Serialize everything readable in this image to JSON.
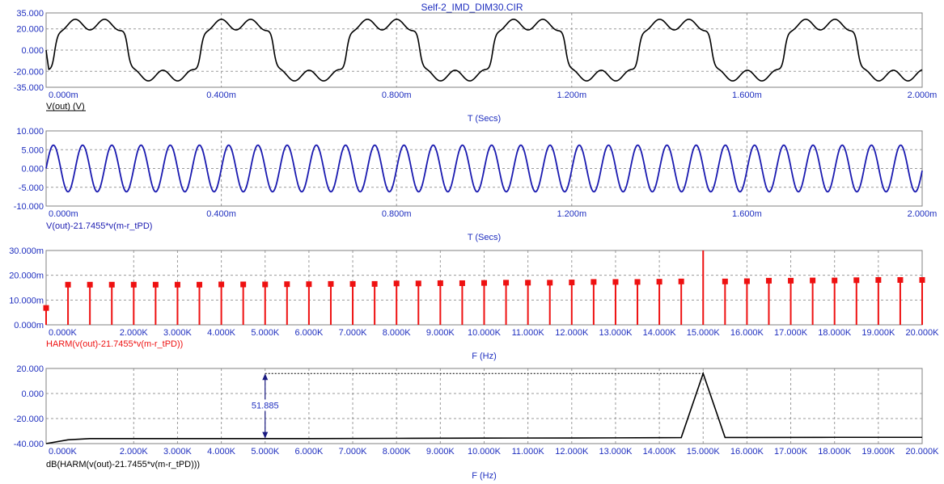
{
  "window_title": "Self-2_IMD_DIM30.CIR",
  "colors": {
    "axis_text": "#1f2fbf",
    "grid": "#9a9a9a",
    "trace_black": "#000000",
    "trace_blue": "#1a1ab0",
    "trace_red": "#ee1111",
    "frame": "#808080"
  },
  "chart_data": [
    {
      "type": "line",
      "expression": "V(out) (V)",
      "expression_color": "#000000",
      "xlabel": "T (Secs)",
      "ylim": [
        -35,
        35
      ],
      "y_tick_values": [
        35,
        20,
        0,
        -20,
        -35
      ],
      "y_tick_labels": [
        "35.000",
        "20.000",
        "0.000",
        "-20.000",
        "-35.000"
      ],
      "xlim": [
        0,
        2.0
      ],
      "x_unit": "ms",
      "x_tick_values": [
        0,
        0.4,
        0.8,
        1.2,
        1.6,
        2.0
      ],
      "x_tick_labels": [
        "0.000m",
        "0.400m",
        "0.800m",
        "1.200m",
        "1.600m",
        "2.000m"
      ],
      "grid": true,
      "square_period_ms": 0.3333,
      "square_amplitude": 24,
      "ripple_amplitude": 5,
      "ripple_period_ms": 0.0667,
      "color": "#000000"
    },
    {
      "type": "line",
      "expression": "V(out)-21.7455*v(m-r_tPD)",
      "expression_color": "#1a1ab0",
      "xlabel": "T (Secs)",
      "ylim": [
        -10,
        10
      ],
      "y_tick_values": [
        10,
        5,
        0,
        -5,
        -10
      ],
      "y_tick_labels": [
        "10.000",
        "5.000",
        "0.000",
        "-5.000",
        "-10.000"
      ],
      "xlim": [
        0,
        2.0
      ],
      "x_unit": "ms",
      "x_tick_values": [
        0,
        0.4,
        0.8,
        1.2,
        1.6,
        2.0
      ],
      "x_tick_labels": [
        "0.000m",
        "0.400m",
        "0.800m",
        "1.200m",
        "1.600m",
        "2.000m"
      ],
      "grid": true,
      "sine_amplitude": 6.2,
      "sine_period_ms": 0.0667,
      "color": "#1a1ab0"
    },
    {
      "type": "bar",
      "expression": "HARM(v(out)-21.7455*v(m-r_tPD))",
      "expression_color": "#ee1111",
      "xlabel": "F (Hz)",
      "ylim": [
        0,
        30
      ],
      "y_unit": "m",
      "y_tick_values": [
        30,
        20,
        10,
        0
      ],
      "y_tick_labels": [
        "30.000m",
        "20.000m",
        "10.000m",
        "0.000m"
      ],
      "xlim": [
        0,
        20000
      ],
      "x_tick_values": [
        0,
        2000,
        3000,
        4000,
        5000,
        6000,
        7000,
        8000,
        9000,
        10000,
        11000,
        12000,
        13000,
        14000,
        15000,
        16000,
        17000,
        18000,
        19000,
        20000
      ],
      "x_tick_labels": [
        "0.000K",
        "2.000K",
        "3.000K",
        "4.000K",
        "5.000K",
        "6.000K",
        "7.000K",
        "8.000K",
        "9.000K",
        "10.000K",
        "11.000K",
        "12.000K",
        "13.000K",
        "14.000K",
        "15.000K",
        "16.000K",
        "17.000K",
        "18.000K",
        "19.000K",
        "20.000K"
      ],
      "grid": true,
      "harmonic_spacing_hz": 500,
      "x": [
        0,
        500,
        1000,
        1500,
        2000,
        2500,
        3000,
        3500,
        4000,
        4500,
        5000,
        5500,
        6000,
        6500,
        7000,
        7500,
        8000,
        8500,
        9000,
        9500,
        10000,
        10500,
        11000,
        11500,
        12000,
        12500,
        13000,
        13500,
        14000,
        14500,
        15000,
        15500,
        16000,
        16500,
        17000,
        17500,
        18000,
        18500,
        19000,
        19500,
        20000
      ],
      "values": [
        6.8,
        16.2,
        16.2,
        16.2,
        16.2,
        16.2,
        16.2,
        16.2,
        16.3,
        16.3,
        16.3,
        16.4,
        16.4,
        16.5,
        16.5,
        16.5,
        16.7,
        16.7,
        16.8,
        16.8,
        16.9,
        17.0,
        17.0,
        17.0,
        17.1,
        17.3,
        17.3,
        17.3,
        17.4,
        17.5,
        30.0,
        17.5,
        17.6,
        17.8,
        17.8,
        17.9,
        17.9,
        18.0,
        18.1,
        18.1,
        18.1
      ],
      "color": "#ee1111"
    },
    {
      "type": "line",
      "expression": "dB(HARM(v(out)-21.7455*v(m-r_tPD)))",
      "expression_color": "#000000",
      "xlabel": "F (Hz)",
      "ylim": [
        -40,
        20
      ],
      "y_tick_values": [
        20,
        0,
        -20,
        -40
      ],
      "y_tick_labels": [
        "20.000",
        "0.000",
        "-20.000",
        "-40.000"
      ],
      "xlim": [
        0,
        20000
      ],
      "x_tick_values": [
        0,
        2000,
        3000,
        4000,
        5000,
        6000,
        7000,
        8000,
        9000,
        10000,
        11000,
        12000,
        13000,
        14000,
        15000,
        16000,
        17000,
        18000,
        19000,
        20000
      ],
      "x_tick_labels": [
        "0.000K",
        "2.000K",
        "3.000K",
        "4.000K",
        "5.000K",
        "6.000K",
        "7.000K",
        "8.000K",
        "9.000K",
        "10.000K",
        "11.000K",
        "12.000K",
        "13.000K",
        "14.000K",
        "15.000K",
        "16.000K",
        "17.000K",
        "18.000K",
        "19.000K",
        "20.000K"
      ],
      "grid": true,
      "x": [
        0,
        500,
        1000,
        2000,
        4000,
        6000,
        8000,
        10000,
        12000,
        14000,
        14500,
        15000,
        15500,
        16000,
        18000,
        20000
      ],
      "values": [
        -40,
        -37,
        -36,
        -36,
        -36,
        -36,
        -35.8,
        -35.6,
        -35.5,
        -35.3,
        -35.2,
        16,
        -35.1,
        -35.1,
        -35,
        -35
      ],
      "annotation": {
        "text": "51.885",
        "x": 5000,
        "y_top": 16,
        "y_bottom": -35.9
      },
      "color": "#000000"
    }
  ]
}
